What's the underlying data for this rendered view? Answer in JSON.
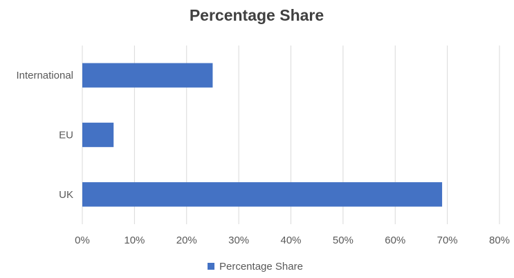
{
  "chart_data": {
    "type": "bar",
    "orientation": "horizontal",
    "title": "Percentage Share",
    "categories": [
      "International",
      "EU",
      "UK"
    ],
    "series": [
      {
        "name": "Percentage Share",
        "values": [
          25,
          6,
          69
        ],
        "color": "#4472c4"
      }
    ],
    "x_ticks": [
      "0%",
      "10%",
      "20%",
      "30%",
      "40%",
      "50%",
      "60%",
      "70%",
      "80%"
    ],
    "xlim": [
      0,
      80
    ],
    "grid": true,
    "legend": "bottom",
    "xlabel": "",
    "ylabel": ""
  }
}
